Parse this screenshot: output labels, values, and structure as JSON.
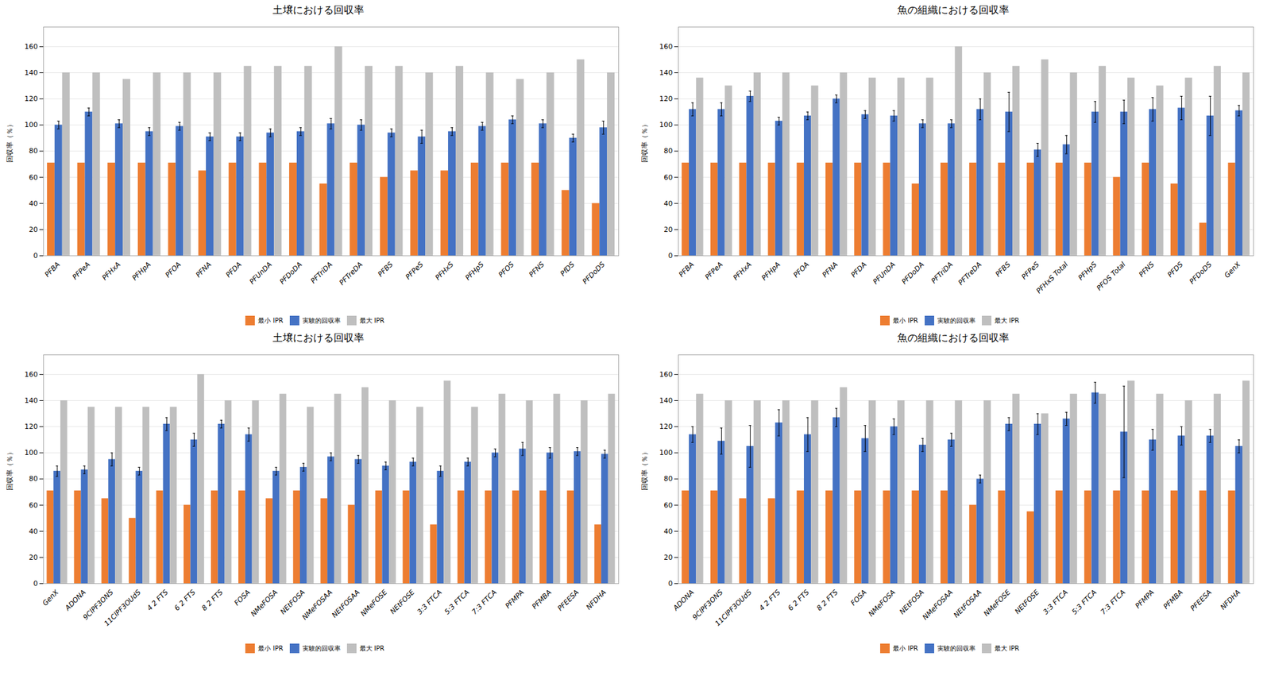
{
  "chart_data": [
    {
      "type": "bar",
      "title": "土壌における回収率",
      "ylabel": "回収率（％）",
      "categories": [
        "PFBA",
        "PFPeA",
        "PFHxA",
        "PFHpA",
        "PFOA",
        "PFNA",
        "PFDA",
        "PFUnDA",
        "PFDoDA",
        "PFTriDA",
        "PFTreDA",
        "PFBS",
        "PFPeS",
        "PFHxS",
        "PFHpS",
        "PFOS",
        "PFNS",
        "PfDS",
        "PFDoDS"
      ],
      "series": [
        {
          "name": "最小 IPR",
          "color": "#ED7D31",
          "values": [
            71,
            71,
            71,
            71,
            71,
            65,
            71,
            71,
            71,
            55,
            71,
            60,
            65,
            65,
            71,
            71,
            71,
            50,
            40
          ]
        },
        {
          "name": "実験的回収率",
          "color": "#4472C4",
          "values": [
            100,
            110,
            101,
            95,
            99,
            91,
            91,
            94,
            95,
            101,
            100,
            94,
            91,
            95,
            99,
            104,
            101,
            90,
            98
          ],
          "errors": [
            3,
            3,
            3,
            3,
            3,
            3,
            3,
            3,
            3,
            4,
            4,
            3,
            5,
            3,
            3,
            3,
            3,
            3,
            5
          ]
        },
        {
          "name": "最大 IPR",
          "color": "#BFBFBF",
          "values": [
            140,
            140,
            135,
            140,
            140,
            140,
            145,
            145,
            145,
            160,
            145,
            145,
            140,
            145,
            140,
            135,
            140,
            150,
            140
          ]
        }
      ],
      "ylim": [
        0,
        175
      ],
      "yticks": [
        0,
        20,
        40,
        60,
        80,
        100,
        120,
        140,
        160
      ],
      "grid": true,
      "legend": "bottom"
    },
    {
      "type": "bar",
      "title": "魚の組織における回収率",
      "ylabel": "回収率（％）",
      "categories": [
        "PFBA",
        "PFPeA",
        "PFHxA",
        "PFHpA",
        "PFOA",
        "PFNA",
        "PFDA",
        "PFUnDA",
        "PFDoDA",
        "PFTriDA",
        "PFTreDA",
        "PFBS",
        "PFPeS",
        "PFHxS Total",
        "PFHpS",
        "PFOS Total",
        "PFNS",
        "PFDS",
        "PFDoDS",
        "GenX"
      ],
      "series": [
        {
          "name": "最小 IPR",
          "color": "#ED7D31",
          "values": [
            71,
            71,
            71,
            71,
            71,
            71,
            71,
            71,
            55,
            71,
            71,
            71,
            71,
            71,
            71,
            60,
            71,
            55,
            25,
            71
          ]
        },
        {
          "name": "実験的回収率",
          "color": "#4472C4",
          "values": [
            112,
            112,
            122,
            103,
            107,
            120,
            108,
            107,
            101,
            101,
            112,
            110,
            81,
            85,
            110,
            110,
            112,
            113,
            107,
            111
          ],
          "errors": [
            5,
            5,
            4,
            3,
            3,
            3,
            3,
            4,
            3,
            3,
            8,
            15,
            5,
            7,
            8,
            9,
            9,
            9,
            15,
            4
          ]
        },
        {
          "name": "最大 IPR",
          "color": "#BFBFBF",
          "values": [
            136,
            130,
            140,
            140,
            130,
            140,
            136,
            136,
            136,
            160,
            140,
            145,
            150,
            140,
            145,
            136,
            130,
            136,
            145,
            140
          ]
        }
      ],
      "ylim": [
        0,
        175
      ],
      "yticks": [
        0,
        20,
        40,
        60,
        80,
        100,
        120,
        140,
        160
      ],
      "grid": true,
      "legend": "bottom"
    },
    {
      "type": "bar",
      "title": "土壌における回収率",
      "ylabel": "回収率（％）",
      "categories": [
        "GenX",
        "ADONA",
        "9ClPF3ONS",
        "11ClPF3OUdS",
        "4 2 FTS",
        "6 2 FTS",
        "8 2 FTS",
        "FOSA",
        "NMeFOSA",
        "NEtFOSA",
        "NMeFOSAA",
        "NEtFOSAA",
        "NMeFOSE",
        "NEtFOSE",
        "3:3 FTCA",
        "5:3 FTCA",
        "7:3 FTCA",
        "PFMPA",
        "PFMBA",
        "PFEESA",
        "NFDHA"
      ],
      "series": [
        {
          "name": "最小 IPR",
          "color": "#ED7D31",
          "values": [
            71,
            71,
            65,
            50,
            71,
            60,
            71,
            71,
            65,
            71,
            65,
            60,
            71,
            71,
            45,
            71,
            71,
            71,
            71,
            71,
            45
          ]
        },
        {
          "name": "実験的回収率",
          "color": "#4472C4",
          "values": [
            86,
            87,
            95,
            86,
            122,
            110,
            122,
            114,
            86,
            89,
            97,
            95,
            90,
            93,
            86,
            93,
            100,
            103,
            100,
            101,
            99
          ],
          "errors": [
            4,
            3,
            5,
            3,
            5,
            5,
            3,
            5,
            3,
            3,
            3,
            3,
            3,
            3,
            4,
            3,
            3,
            5,
            4,
            3,
            3
          ]
        },
        {
          "name": "最大 IPR",
          "color": "#BFBFBF",
          "values": [
            140,
            135,
            135,
            135,
            135,
            160,
            140,
            140,
            145,
            135,
            145,
            150,
            140,
            135,
            155,
            135,
            145,
            140,
            145,
            140,
            145
          ]
        }
      ],
      "ylim": [
        0,
        175
      ],
      "yticks": [
        0,
        20,
        40,
        60,
        80,
        100,
        120,
        140,
        160
      ],
      "grid": true,
      "legend": "bottom"
    },
    {
      "type": "bar",
      "title": "魚の組織における回収率",
      "ylabel": "回収率（％）",
      "categories": [
        "ADONA",
        "9ClPF3ONS",
        "11ClPF3OUdS",
        "4 2 FTS",
        "6 2 FTS",
        "8 2 FTS",
        "FOSA",
        "NMeFOSA",
        "NEtFOSA",
        "NMeFOSAA",
        "NEtFOSAA",
        "NMeFOSE",
        "NEtFOSE",
        "3:3 FTCA",
        "5:3 FTCA",
        "7:3 FTCA",
        "PFMPA",
        "PFMBA",
        "PFEESA",
        "NFDHA"
      ],
      "series": [
        {
          "name": "最小 IPR",
          "color": "#ED7D31",
          "values": [
            71,
            71,
            65,
            65,
            71,
            71,
            71,
            71,
            71,
            71,
            60,
            71,
            55,
            71,
            71,
            71,
            71,
            71,
            71,
            71
          ]
        },
        {
          "name": "実験的回収率",
          "color": "#4472C4",
          "values": [
            114,
            109,
            105,
            123,
            114,
            127,
            111,
            120,
            106,
            110,
            80,
            122,
            122,
            126,
            146,
            116,
            110,
            113,
            113,
            105
          ],
          "errors": [
            6,
            10,
            16,
            10,
            13,
            7,
            10,
            6,
            5,
            5,
            3,
            5,
            8,
            5,
            8,
            35,
            8,
            7,
            5,
            5
          ]
        },
        {
          "name": "最大 IPR",
          "color": "#BFBFBF",
          "values": [
            145,
            140,
            140,
            140,
            140,
            150,
            140,
            140,
            140,
            140,
            140,
            145,
            130,
            145,
            145,
            155,
            145,
            140,
            145,
            155
          ]
        }
      ],
      "ylim": [
        0,
        175
      ],
      "yticks": [
        0,
        20,
        40,
        60,
        80,
        100,
        120,
        140,
        160
      ],
      "grid": true,
      "legend": "bottom"
    }
  ]
}
